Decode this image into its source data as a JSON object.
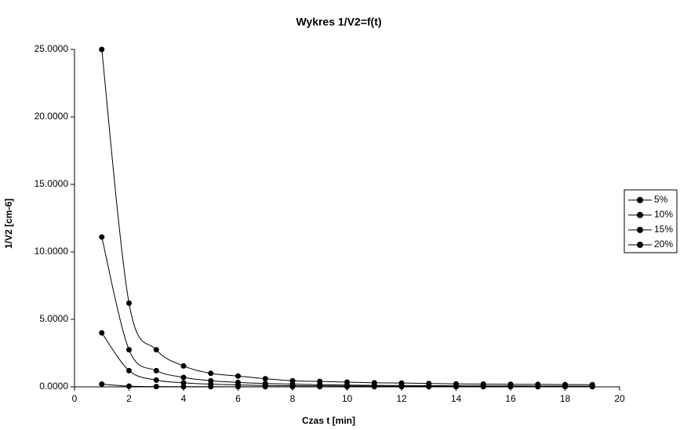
{
  "chart_data": {
    "type": "line",
    "title": "Wykres 1/V2=f(t)",
    "x_label": "Czas t [min]",
    "y_label": "1/V2 [cm-6]",
    "x": [
      1,
      2,
      3,
      4,
      5,
      6,
      7,
      8,
      9,
      10,
      11,
      12,
      13,
      14,
      15,
      16,
      17,
      18,
      19
    ],
    "series": [
      {
        "name": "5%",
        "color": "#000000",
        "values": [
          25.0,
          6.2,
          2.75,
          1.55,
          1.0,
          0.8,
          0.6,
          0.45,
          0.4,
          0.35,
          0.3,
          0.28,
          0.25,
          0.22,
          0.2,
          0.19,
          0.18,
          0.17,
          0.16
        ]
      },
      {
        "name": "10%",
        "color": "#000000",
        "values": [
          11.1,
          2.75,
          1.2,
          0.7,
          0.45,
          0.33,
          0.25,
          0.2,
          0.16,
          0.13,
          0.11,
          0.1,
          0.09,
          0.08,
          0.07,
          0.065,
          0.06,
          0.055,
          0.05
        ]
      },
      {
        "name": "15%",
        "color": "#000000",
        "values": [
          4.0,
          1.2,
          0.5,
          0.3,
          0.2,
          0.14,
          0.1,
          0.08,
          0.07,
          0.06,
          0.05,
          0.045,
          0.04,
          0.038,
          0.035,
          0.033,
          0.032,
          0.031,
          0.03
        ]
      },
      {
        "name": "20%",
        "color": "#000000",
        "values": [
          0.2,
          0.05,
          0.02,
          0.015,
          0.012,
          0.01,
          0.01,
          0.01,
          0.01,
          0.01,
          0.01,
          0.01,
          0.01,
          0.01,
          0.01,
          0.01,
          0.01,
          0.01,
          0.01
        ]
      }
    ],
    "xlim": [
      0,
      20
    ],
    "xticks": [
      0,
      2,
      4,
      6,
      8,
      10,
      12,
      14,
      16,
      18,
      20
    ],
    "ylim": [
      0,
      25
    ],
    "yticks": [
      {
        "value": 0,
        "label": "0.0000"
      },
      {
        "value": 5,
        "label": "5.0000"
      },
      {
        "value": 10,
        "label": "10.0000"
      },
      {
        "value": 15,
        "label": "15.0000"
      },
      {
        "value": 20,
        "label": "20.0000"
      },
      {
        "value": 25,
        "label": "25.0000"
      }
    ],
    "grid": false,
    "legend": "right",
    "smooth": true
  }
}
